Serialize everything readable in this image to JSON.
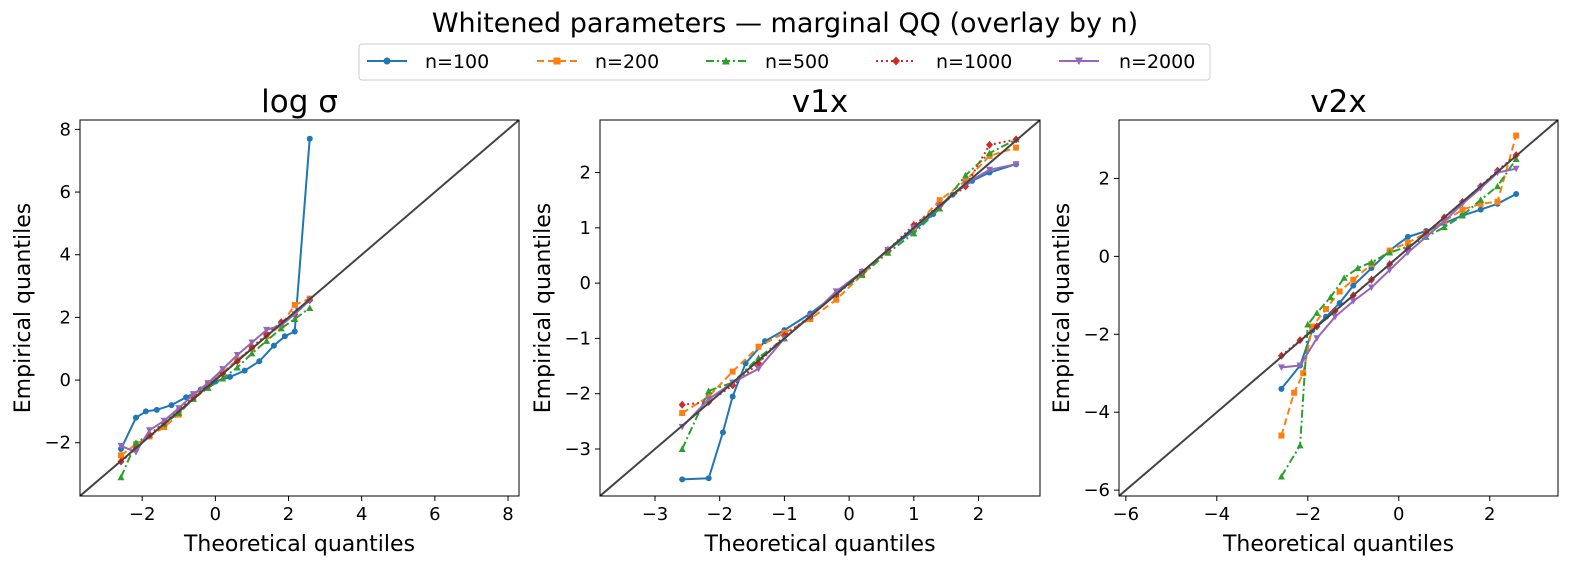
{
  "figure": {
    "suptitle": "Whitened parameters — marginal QQ (overlay by n)",
    "legend": {
      "placement": "top-center",
      "entries": [
        {
          "label": "n=100",
          "color": "#1f77b4",
          "marker": "circle",
          "linestyle": "solid"
        },
        {
          "label": "n=200",
          "color": "#ff7f0e",
          "marker": "square",
          "linestyle": "dashed"
        },
        {
          "label": "n=500",
          "color": "#2ca02c",
          "marker": "triangle-up",
          "linestyle": "dashdot"
        },
        {
          "label": "n=1000",
          "color": "#d62728",
          "marker": "diamond",
          "linestyle": "dotted"
        },
        {
          "label": "n=2000",
          "color": "#9467bd",
          "marker": "triangle-down",
          "linestyle": "solid"
        }
      ]
    },
    "reference_line_color": "#444444"
  },
  "chart_data": [
    {
      "type": "line",
      "title": "log σ",
      "xlabel": "Theoretical quantiles",
      "ylabel": "Empirical quantiles",
      "xlim": [
        -3.7,
        8.3
      ],
      "ylim": [
        -3.7,
        8.3
      ],
      "xticks": [
        -2,
        0,
        2,
        4,
        6,
        8
      ],
      "yticks": [
        -2,
        0,
        2,
        4,
        6,
        8
      ],
      "series": [
        {
          "name": "n=100",
          "x": [
            -2.58,
            -2.17,
            -1.9,
            -1.6,
            -1.2,
            -0.8,
            -0.4,
            0,
            0.4,
            0.8,
            1.2,
            1.6,
            1.9,
            2.17,
            2.58
          ],
          "y": [
            -2.2,
            -1.2,
            -1.0,
            -0.95,
            -0.8,
            -0.55,
            -0.3,
            -0.05,
            0.1,
            0.3,
            0.6,
            1.1,
            1.4,
            1.55,
            7.7
          ]
        },
        {
          "name": "n=200",
          "x": [
            -2.58,
            -2.17,
            -1.8,
            -1.4,
            -1.0,
            -0.6,
            -0.2,
            0.2,
            0.6,
            1.0,
            1.4,
            1.8,
            2.17,
            2.58
          ],
          "y": [
            -2.4,
            -2.05,
            -1.8,
            -1.5,
            -1.1,
            -0.55,
            -0.1,
            0.25,
            0.65,
            1.0,
            1.4,
            1.75,
            2.4,
            2.6
          ]
        },
        {
          "name": "n=500",
          "x": [
            -2.58,
            -2.17,
            -1.8,
            -1.4,
            -1.0,
            -0.6,
            -0.2,
            0.2,
            0.6,
            1.0,
            1.4,
            1.8,
            2.17,
            2.58
          ],
          "y": [
            -3.1,
            -2.0,
            -1.75,
            -1.4,
            -1.05,
            -0.6,
            -0.25,
            0.05,
            0.4,
            0.85,
            1.25,
            1.65,
            1.95,
            2.3
          ]
        },
        {
          "name": "n=1000",
          "x": [
            -2.58,
            -2.17,
            -1.8,
            -1.4,
            -1.0,
            -0.6,
            -0.2,
            0.2,
            0.6,
            1.0,
            1.4,
            1.8,
            2.17,
            2.58
          ],
          "y": [
            -2.6,
            -2.2,
            -1.75,
            -1.35,
            -0.95,
            -0.55,
            -0.15,
            0.2,
            0.6,
            1.05,
            1.45,
            1.85,
            2.1,
            2.55
          ]
        },
        {
          "name": "n=2000",
          "x": [
            -2.58,
            -2.17,
            -1.8,
            -1.4,
            -1.0,
            -0.6,
            -0.2,
            0.2,
            0.6,
            1.0,
            1.4,
            1.8,
            2.17,
            2.58
          ],
          "y": [
            -2.1,
            -2.3,
            -1.6,
            -1.3,
            -0.9,
            -0.45,
            -0.1,
            0.35,
            0.8,
            1.2,
            1.6,
            1.75,
            2.1,
            2.55
          ]
        }
      ]
    },
    {
      "type": "line",
      "title": "v1x",
      "xlabel": "Theoretical quantiles",
      "ylabel": "Empirical quantiles",
      "xlim": [
        -3.85,
        2.95
      ],
      "ylim": [
        -3.85,
        2.95
      ],
      "xticks": [
        -3,
        -2,
        -1,
        0,
        1,
        2
      ],
      "yticks": [
        -3,
        -2,
        -1,
        0,
        1,
        2
      ],
      "series": [
        {
          "name": "n=100",
          "x": [
            -2.58,
            -2.17,
            -1.95,
            -1.8,
            -1.6,
            -1.3,
            -1.0,
            -0.6,
            -0.2,
            0.2,
            0.6,
            1.0,
            1.3,
            1.6,
            1.9,
            2.17,
            2.58
          ],
          "y": [
            -3.55,
            -3.53,
            -2.7,
            -2.05,
            -1.45,
            -1.05,
            -0.85,
            -0.55,
            -0.2,
            0.2,
            0.6,
            0.95,
            1.25,
            1.6,
            1.85,
            2.0,
            2.15
          ]
        },
        {
          "name": "n=200",
          "x": [
            -2.58,
            -2.17,
            -1.8,
            -1.4,
            -1.0,
            -0.6,
            -0.2,
            0.2,
            0.6,
            1.0,
            1.4,
            1.8,
            2.17,
            2.58
          ],
          "y": [
            -2.35,
            -2.05,
            -1.6,
            -1.15,
            -0.9,
            -0.65,
            -0.3,
            0.15,
            0.6,
            1.0,
            1.5,
            1.85,
            2.3,
            2.45
          ]
        },
        {
          "name": "n=500",
          "x": [
            -2.58,
            -2.17,
            -1.8,
            -1.4,
            -1.0,
            -0.6,
            -0.2,
            0.2,
            0.6,
            1.0,
            1.4,
            1.8,
            2.17,
            2.58
          ],
          "y": [
            -3.0,
            -1.95,
            -1.8,
            -1.35,
            -1.0,
            -0.6,
            -0.2,
            0.15,
            0.55,
            0.9,
            1.35,
            1.95,
            2.35,
            2.6
          ]
        },
        {
          "name": "n=1000",
          "x": [
            -2.58,
            -2.17,
            -1.8,
            -1.4,
            -1.0,
            -0.6,
            -0.2,
            0.2,
            0.6,
            1.0,
            1.4,
            1.8,
            2.17,
            2.58
          ],
          "y": [
            -2.2,
            -2.15,
            -1.85,
            -1.45,
            -0.95,
            -0.6,
            -0.2,
            0.2,
            0.6,
            1.05,
            1.4,
            1.75,
            2.5,
            2.6
          ]
        },
        {
          "name": "n=2000",
          "x": [
            -2.58,
            -2.17,
            -1.8,
            -1.4,
            -1.0,
            -0.6,
            -0.2,
            0.2,
            0.6,
            1.0,
            1.4,
            1.8,
            2.17,
            2.58
          ],
          "y": [
            -2.6,
            -2.1,
            -1.8,
            -1.55,
            -1.0,
            -0.6,
            -0.15,
            0.2,
            0.6,
            1.0,
            1.4,
            1.8,
            2.05,
            2.15
          ]
        }
      ]
    },
    {
      "type": "line",
      "title": "v2x",
      "xlabel": "Theoretical quantiles",
      "ylabel": "Empirical quantiles",
      "xlim": [
        -6.15,
        3.5
      ],
      "ylim": [
        -6.15,
        3.5
      ],
      "xticks": [
        -6,
        -4,
        -2,
        0,
        2
      ],
      "yticks": [
        -6,
        -4,
        -2,
        0,
        2
      ],
      "series": [
        {
          "name": "n=100",
          "x": [
            -2.58,
            -2.17,
            -1.9,
            -1.6,
            -1.3,
            -1.0,
            -0.6,
            -0.2,
            0.2,
            0.6,
            1.0,
            1.4,
            1.8,
            2.17,
            2.58
          ],
          "y": [
            -3.4,
            -2.8,
            -1.9,
            -1.55,
            -1.2,
            -0.75,
            -0.3,
            0.15,
            0.5,
            0.65,
            0.85,
            1.05,
            1.2,
            1.35,
            1.6
          ]
        },
        {
          "name": "n=200",
          "x": [
            -2.58,
            -2.3,
            -2.1,
            -1.9,
            -1.6,
            -1.3,
            -1.0,
            -0.6,
            -0.2,
            0.2,
            0.6,
            1.0,
            1.4,
            1.8,
            2.17,
            2.58
          ],
          "y": [
            -4.6,
            -3.5,
            -3.0,
            -1.8,
            -1.35,
            -0.9,
            -0.6,
            -0.2,
            0.15,
            0.35,
            0.6,
            0.9,
            1.2,
            1.35,
            1.4,
            3.1
          ]
        },
        {
          "name": "n=500",
          "x": [
            -2.58,
            -2.17,
            -2.0,
            -1.8,
            -1.5,
            -1.2,
            -0.9,
            -0.6,
            -0.2,
            0.2,
            0.6,
            1.0,
            1.4,
            1.8,
            2.17,
            2.58
          ],
          "y": [
            -5.65,
            -4.85,
            -1.75,
            -1.45,
            -1.05,
            -0.55,
            -0.3,
            -0.15,
            0.1,
            0.25,
            0.5,
            0.75,
            1.05,
            1.45,
            1.8,
            2.5
          ]
        },
        {
          "name": "n=1000",
          "x": [
            -2.58,
            -2.17,
            -1.8,
            -1.4,
            -1.0,
            -0.6,
            -0.2,
            0.2,
            0.6,
            1.0,
            1.4,
            1.8,
            2.17,
            2.58
          ],
          "y": [
            -2.55,
            -2.15,
            -1.8,
            -1.4,
            -1.0,
            -0.6,
            -0.2,
            0.2,
            0.6,
            1.0,
            1.4,
            1.8,
            2.2,
            2.6
          ]
        },
        {
          "name": "n=2000",
          "x": [
            -2.58,
            -2.17,
            -1.8,
            -1.4,
            -1.0,
            -0.6,
            -0.2,
            0.2,
            0.6,
            1.0,
            1.4,
            1.8,
            2.17,
            2.58
          ],
          "y": [
            -2.85,
            -2.8,
            -2.1,
            -1.55,
            -1.15,
            -0.8,
            -0.35,
            0.1,
            0.5,
            0.9,
            1.35,
            1.75,
            2.15,
            2.25
          ]
        }
      ]
    }
  ]
}
